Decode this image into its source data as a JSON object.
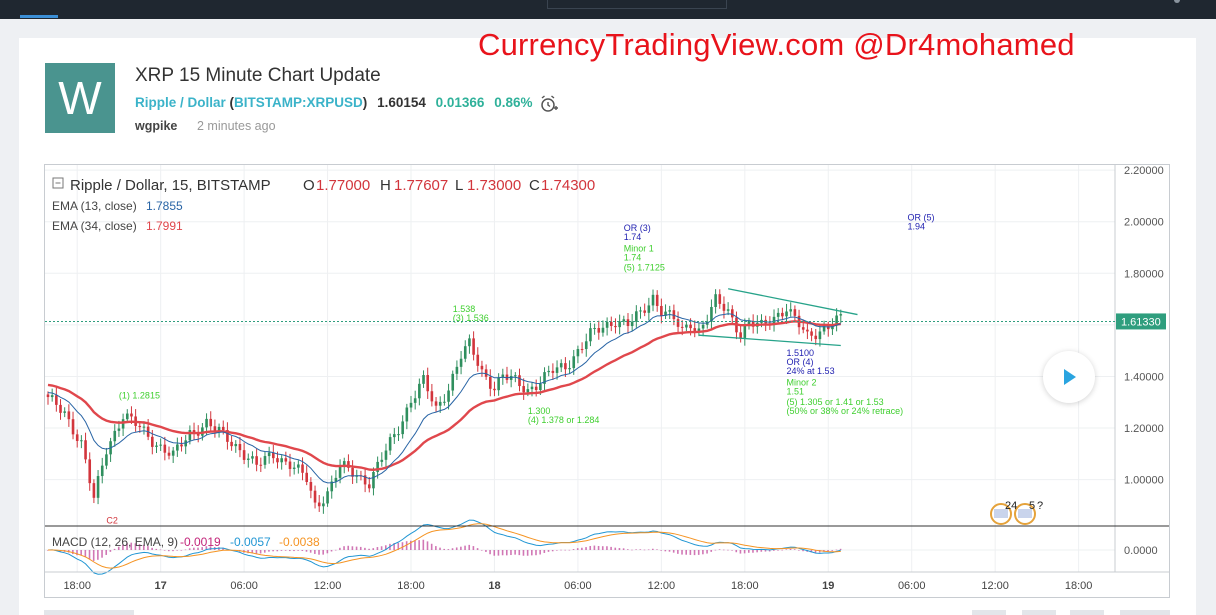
{
  "watermark": "CurrencyTradingView.com @Dr4mohamed",
  "avatar_letter": "W",
  "idea": {
    "title": "XRP 15 Minute Chart Update",
    "symbol_name": "Ripple / Dollar",
    "exchange_symbol": "BITSTAMP:XRPUSD",
    "price": "1.60154",
    "change": "0.01366",
    "change_pct": "0.86%",
    "author": "wgpike",
    "posted": "2 minutes ago"
  },
  "colors": {
    "up": "#2f8f5e",
    "down": "#d2353c",
    "ema13": "#2864a5",
    "ema34": "#e0474c",
    "label_blue": "#1f1fb0",
    "label_green": "#3fcf2f",
    "trendline": "#27a38a",
    "macd": "#2196d3",
    "signal": "#f59423",
    "hist": "#c24a9c"
  },
  "chart_data": {
    "type": "candlestick",
    "symbol_line": {
      "name": "Ripple / Dollar, 15, BITSTAMP",
      "o_label": "O",
      "o": "1.77000",
      "h_label": "H",
      "h": "1.77607",
      "l_label": "L",
      "l": "1.73000",
      "c_label": "C",
      "c": "1.74300"
    },
    "indicators": [
      {
        "label": "EMA (13, close)",
        "value": "1.7855"
      },
      {
        "label": "EMA (34, close)",
        "value": "1.7991"
      }
    ],
    "macd": {
      "label": "MACD (12, 26, EMA, 9)",
      "hist": "-0.0019",
      "macd": "-0.0057",
      "signal": "-0.0038"
    },
    "ylim": [
      0.82,
      2.22
    ],
    "y_ticks": [
      "2.20000",
      "2.00000",
      "1.80000",
      "1.60000",
      "1.40000",
      "1.20000",
      "1.00000"
    ],
    "macd_tick": "0.0000",
    "last_price": "1.61330",
    "x_ticks": [
      "18:00",
      "17",
      "06:00",
      "12:00",
      "18:00",
      "18",
      "06:00",
      "12:00",
      "18:00",
      "19",
      "06:00",
      "12:00",
      "18:00"
    ],
    "close_path": [
      {
        "t": 0,
        "v": 1.31
      },
      {
        "t": 4,
        "v": 1.26
      },
      {
        "t": 8,
        "v": 1.14
      },
      {
        "t": 11,
        "v": 0.92
      },
      {
        "t": 14,
        "v": 1.12
      },
      {
        "t": 18,
        "v": 1.25
      },
      {
        "t": 22,
        "v": 1.2
      },
      {
        "t": 26,
        "v": 1.14
      },
      {
        "t": 30,
        "v": 1.09
      },
      {
        "t": 34,
        "v": 1.18
      },
      {
        "t": 38,
        "v": 1.22
      },
      {
        "t": 42,
        "v": 1.17
      },
      {
        "t": 46,
        "v": 1.12
      },
      {
        "t": 50,
        "v": 1.05
      },
      {
        "t": 54,
        "v": 1.1
      },
      {
        "t": 58,
        "v": 1.06
      },
      {
        "t": 62,
        "v": 1.0
      },
      {
        "t": 64,
        "v": 0.9
      },
      {
        "t": 67,
        "v": 0.95
      },
      {
        "t": 70,
        "v": 1.05
      },
      {
        "t": 74,
        "v": 1.02
      },
      {
        "t": 77,
        "v": 0.99
      },
      {
        "t": 80,
        "v": 1.08
      },
      {
        "t": 84,
        "v": 1.2
      },
      {
        "t": 87,
        "v": 1.31
      },
      {
        "t": 90,
        "v": 1.38
      },
      {
        "t": 93,
        "v": 1.27
      },
      {
        "t": 96,
        "v": 1.36
      },
      {
        "t": 99,
        "v": 1.48
      },
      {
        "t": 101,
        "v": 1.52
      },
      {
        "t": 104,
        "v": 1.42
      },
      {
        "t": 107,
        "v": 1.36
      },
      {
        "t": 109,
        "v": 1.4
      },
      {
        "t": 112,
        "v": 1.38
      },
      {
        "t": 115,
        "v": 1.35
      },
      {
        "t": 118,
        "v": 1.38
      },
      {
        "t": 121,
        "v": 1.42
      },
      {
        "t": 124,
        "v": 1.44
      },
      {
        "t": 127,
        "v": 1.5
      },
      {
        "t": 130,
        "v": 1.56
      },
      {
        "t": 133,
        "v": 1.59
      },
      {
        "t": 136,
        "v": 1.62
      },
      {
        "t": 139,
        "v": 1.6
      },
      {
        "t": 142,
        "v": 1.64
      },
      {
        "t": 145,
        "v": 1.71
      },
      {
        "t": 147,
        "v": 1.66
      },
      {
        "t": 150,
        "v": 1.62
      },
      {
        "t": 152,
        "v": 1.57
      },
      {
        "t": 154,
        "v": 1.61
      },
      {
        "t": 156,
        "v": 1.58
      },
      {
        "t": 158,
        "v": 1.63
      },
      {
        "t": 160,
        "v": 1.69
      },
      {
        "t": 163,
        "v": 1.65
      },
      {
        "t": 166,
        "v": 1.57
      },
      {
        "t": 168,
        "v": 1.61
      },
      {
        "t": 171,
        "v": 1.59
      },
      {
        "t": 174,
        "v": 1.63
      },
      {
        "t": 177,
        "v": 1.67
      },
      {
        "t": 179,
        "v": 1.62
      },
      {
        "t": 182,
        "v": 1.55
      },
      {
        "t": 185,
        "v": 1.58
      },
      {
        "t": 188,
        "v": 1.61
      },
      {
        "t": 190,
        "v": 1.62
      }
    ],
    "trendlines": [
      {
        "t1": 163,
        "v1": 1.74,
        "t2": 194,
        "v2": 1.64
      },
      {
        "t1": 156,
        "v1": 1.56,
        "t2": 190,
        "v2": 1.52
      }
    ],
    "annotations": [
      {
        "id": "a1",
        "text": "(1) 1.2815",
        "t": 17,
        "v": 1.315,
        "color": "green"
      },
      {
        "id": "a2",
        "text": "C2",
        "t": 14,
        "v": 0.83,
        "color": "red"
      },
      {
        "id": "a3",
        "text": "1.538",
        "t": 97,
        "v": 1.65,
        "color": "green"
      },
      {
        "id": "a4",
        "text": "(3) 1.536",
        "t": 97,
        "v": 1.615,
        "color": "green"
      },
      {
        "id": "a5",
        "text": "1.300",
        "t": 115,
        "v": 1.255,
        "color": "green"
      },
      {
        "id": "a6",
        "text": "(4) 1.378 or 1.284",
        "t": 115,
        "v": 1.22,
        "color": "green"
      },
      {
        "id": "a7",
        "text": "OR (3)",
        "t": 138,
        "v": 1.965,
        "color": "blue"
      },
      {
        "id": "a8",
        "text": "1.74",
        "t": 138,
        "v": 1.93,
        "color": "blue"
      },
      {
        "id": "a9",
        "text": "Minor 1",
        "t": 138,
        "v": 1.885,
        "color": "green"
      },
      {
        "id": "a10",
        "text": "1.74",
        "t": 138,
        "v": 1.85,
        "color": "green"
      },
      {
        "id": "a11",
        "text": "(5) 1.7125",
        "t": 138,
        "v": 1.81,
        "color": "green"
      },
      {
        "id": "a12",
        "text": "OR (5)",
        "t": 206,
        "v": 2.005,
        "color": "blue"
      },
      {
        "id": "a13",
        "text": "1.94",
        "t": 206,
        "v": 1.97,
        "color": "blue"
      },
      {
        "id": "a14",
        "text": "1.5100",
        "t": 177,
        "v": 1.48,
        "color": "blue"
      },
      {
        "id": "a15",
        "text": "OR (4)",
        "t": 177,
        "v": 1.445,
        "color": "blue"
      },
      {
        "id": "a16",
        "text": "24% at 1.53",
        "t": 177,
        "v": 1.41,
        "color": "blue"
      },
      {
        "id": "a17",
        "text": "Minor 2",
        "t": 177,
        "v": 1.365,
        "color": "green"
      },
      {
        "id": "a18",
        "text": "1.51",
        "t": 177,
        "v": 1.33,
        "color": "green"
      },
      {
        "id": "a19",
        "text": "(5) 1.305 or 1.41 or 1.53",
        "t": 177,
        "v": 1.29,
        "color": "green"
      },
      {
        "id": "a20",
        "text": "(50% or 38% or 24% retrace)",
        "t": 177,
        "v": 1.255,
        "color": "green"
      }
    ],
    "event_labels": [
      "24",
      "5",
      "?"
    ]
  }
}
